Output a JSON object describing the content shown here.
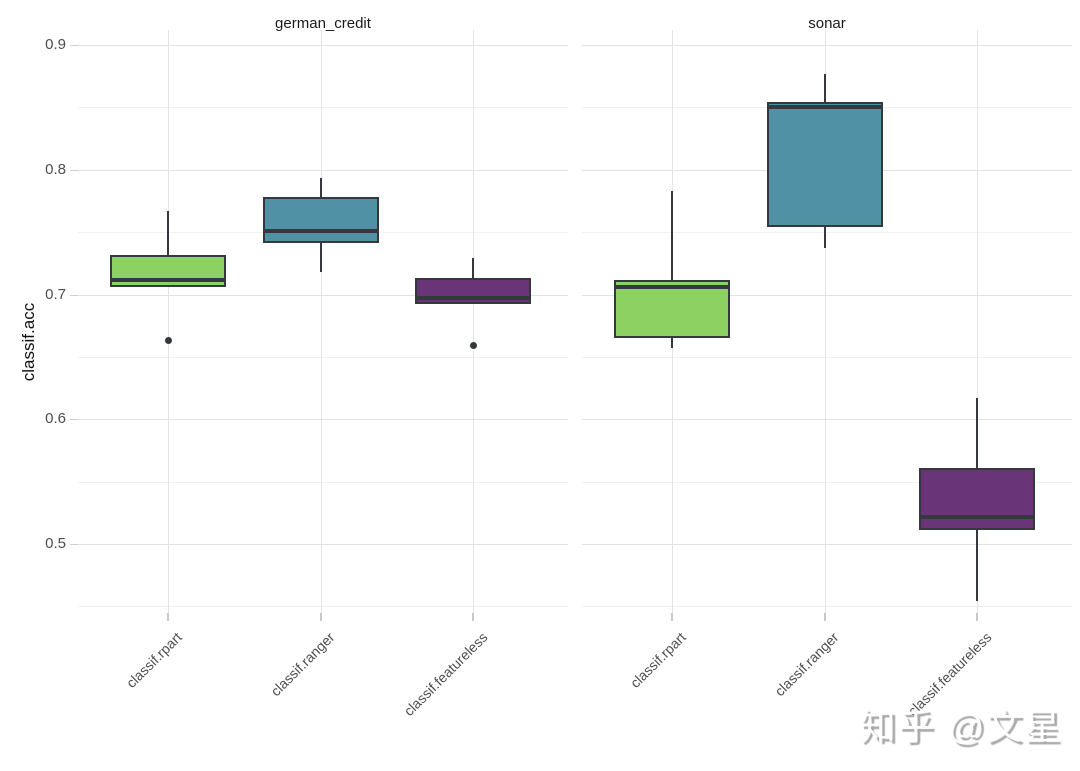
{
  "watermark": {
    "text": "知乎 @文星"
  },
  "chart_data": {
    "type": "boxplot",
    "title": "",
    "xlabel": "",
    "ylabel": "classif.acc",
    "ylim": [
      0.44,
      0.91
    ],
    "grid": true,
    "legend_position": "none",
    "y_major_ticks": [
      0.9,
      0.8,
      0.7,
      0.6,
      0.5
    ],
    "y_minor_ticks": [
      0.85,
      0.75,
      0.65,
      0.55,
      0.45
    ],
    "categories": [
      "classif.rpart",
      "classif.ranger",
      "classif.featureless"
    ],
    "series_colors": {
      "classif.rpart": "#8dd163",
      "classif.ranger": "#5191a5",
      "classif.featureless": "#6a3578"
    },
    "box_stroke_color": "#35393d",
    "facets": [
      {
        "label": "german_credit",
        "boxes": [
          {
            "category": "classif.rpart",
            "fill": "#8dd163",
            "whisker_low": 0.706,
            "q1": 0.706,
            "median": 0.712,
            "q3": 0.732,
            "whisker_high": 0.767,
            "outliers": [
              0.663
            ]
          },
          {
            "category": "classif.ranger",
            "fill": "#5191a5",
            "whisker_low": 0.718,
            "q1": 0.741,
            "median": 0.751,
            "q3": 0.778,
            "whisker_high": 0.793,
            "outliers": []
          },
          {
            "category": "classif.featureless",
            "fill": "#6a3578",
            "whisker_low": 0.692,
            "q1": 0.692,
            "median": 0.697,
            "q3": 0.713,
            "whisker_high": 0.729,
            "outliers": [
              0.659
            ]
          }
        ]
      },
      {
        "label": "sonar",
        "boxes": [
          {
            "category": "classif.rpart",
            "fill": "#8dd163",
            "whisker_low": 0.657,
            "q1": 0.665,
            "median": 0.706,
            "q3": 0.712,
            "whisker_high": 0.783,
            "outliers": []
          },
          {
            "category": "classif.ranger",
            "fill": "#5191a5",
            "whisker_low": 0.737,
            "q1": 0.754,
            "median": 0.85,
            "q3": 0.854,
            "whisker_high": 0.877,
            "outliers": []
          },
          {
            "category": "classif.featureless",
            "fill": "#6a3578",
            "whisker_low": 0.454,
            "q1": 0.511,
            "median": 0.522,
            "q3": 0.561,
            "whisker_high": 0.617,
            "outliers": []
          }
        ]
      }
    ]
  }
}
